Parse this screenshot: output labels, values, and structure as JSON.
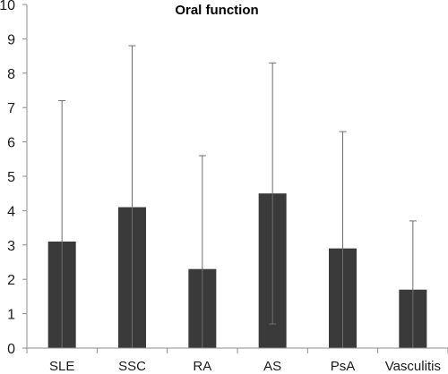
{
  "chart_data": {
    "type": "bar",
    "title": "Oral function",
    "xlabel": "",
    "ylabel": "",
    "categories": [
      "SLE",
      "SSC",
      "RA",
      "AS",
      "PsA",
      "Vasculitis"
    ],
    "values": [
      3.1,
      4.1,
      2.3,
      4.5,
      2.9,
      1.7
    ],
    "error_upper": [
      7.2,
      8.8,
      5.6,
      8.3,
      6.3,
      3.7
    ],
    "error_lower": [
      0,
      0,
      0,
      0.7,
      0,
      0
    ],
    "ylim": [
      0,
      10
    ],
    "yticks": [
      "0",
      "1",
      "2",
      "3",
      "4",
      "5",
      "6",
      "7",
      "8",
      "9",
      "10"
    ],
    "grid": false,
    "legend": "none",
    "bar_color": "#3a3a3a",
    "axis_color": "#8c8c8c"
  }
}
